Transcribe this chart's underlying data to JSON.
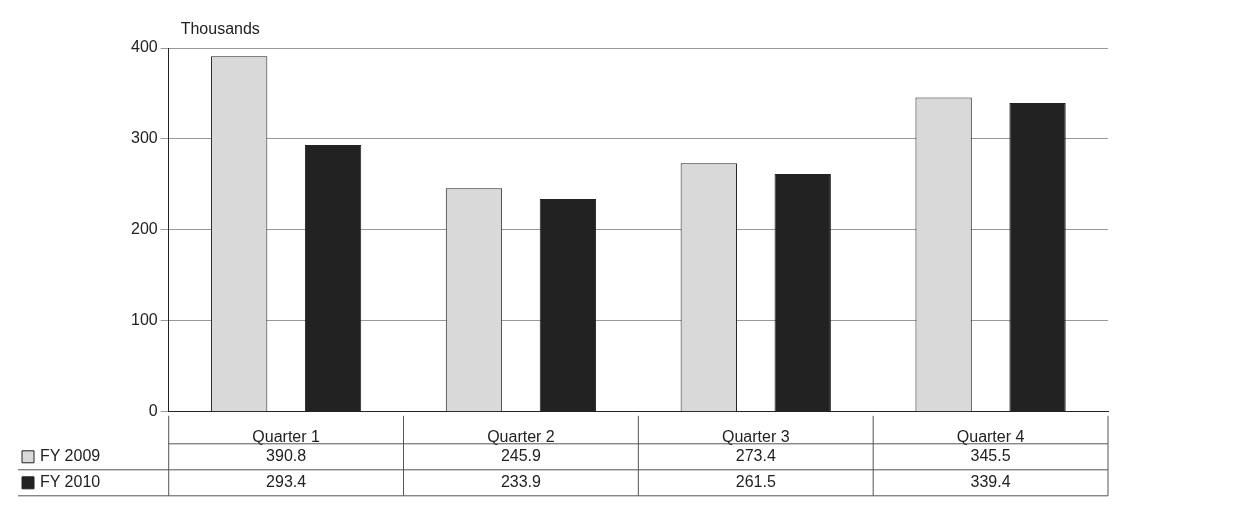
{
  "chart_data": {
    "type": "bar",
    "ylabel": "Thousands",
    "categories": [
      "Quarter 1",
      "Quarter 2",
      "Quarter 3",
      "Quarter 4"
    ],
    "series": [
      {
        "name": "FY 2009",
        "color": "#d9d9d9",
        "values": [
          390.8,
          245.9,
          273.4,
          345.5
        ]
      },
      {
        "name": "FY 2010",
        "color": "#222222",
        "values": [
          293.4,
          233.9,
          261.5,
          339.4
        ]
      }
    ],
    "ylim": [
      0,
      400
    ],
    "yticks": [
      0,
      100,
      200,
      300,
      400
    ],
    "grid": "y",
    "data_labels": true,
    "legend": "bottom left"
  }
}
